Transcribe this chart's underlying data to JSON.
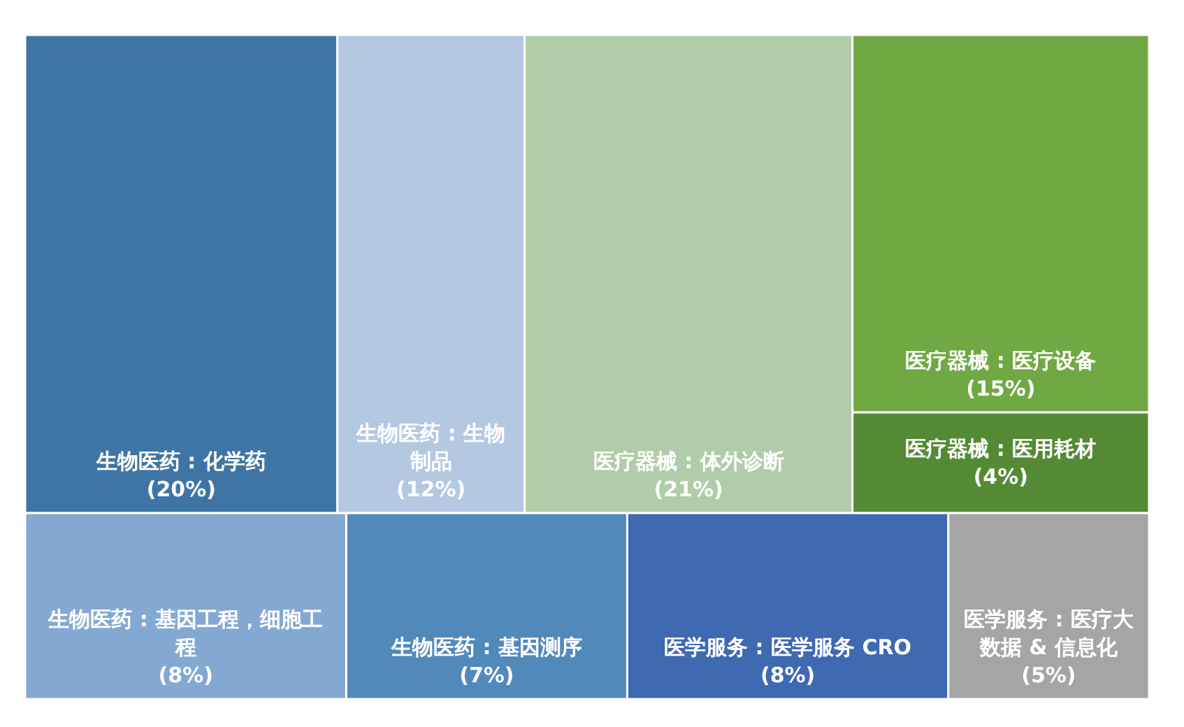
{
  "chart_data": {
    "type": "other",
    "categories": [
      "生物医药 : 化学药",
      "生物医药 : 生物制品",
      "医疗器械 : 体外诊断",
      "医疗器械 : 医疗设备",
      "医疗器械 : 医用耗材",
      "生物医药 : 基因工程，细胞工程",
      "生物医药 : 基因测序",
      "医学服务 : 医学服务 CRO",
      "医学服务 : 医疗大数据 & 信息化"
    ],
    "values": [
      20,
      12,
      21,
      15,
      4,
      8,
      7,
      8,
      5
    ],
    "value_labels": [
      "(20%)",
      "(12%)",
      "(21%)",
      "(15%)",
      "(4%)",
      "(8%)",
      "(7%)",
      "(8%)",
      "(5%)"
    ],
    "colors": [
      "#3f75a4",
      "#b4c8e2",
      "#b1cca8",
      "#70a844",
      "#558a35",
      "#83a9d2",
      "#5189bb",
      "#3f69b0",
      "#a5a5a5"
    ]
  }
}
